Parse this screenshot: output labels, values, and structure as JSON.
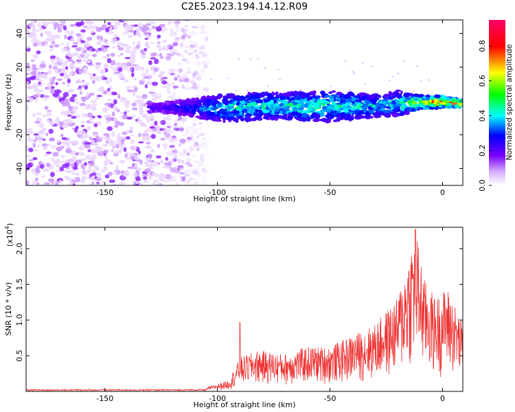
{
  "title": "C2E5.2023.194.14.12.R09",
  "chart_data": [
    {
      "type": "heatmap",
      "xlabel": "Height of straight line (km)",
      "ylabel": "Frequency (Hz)",
      "xlim": [
        -185,
        9
      ],
      "ylim": [
        -50,
        48
      ],
      "xticks": [
        -150,
        -100,
        -50,
        0
      ],
      "yticks": [
        -40,
        -20,
        0,
        20,
        40
      ],
      "colorbar": {
        "label": "Normalized spectral amplitude",
        "range": [
          0,
          0.95
        ],
        "ticks": [
          0.0,
          0.2,
          0.4,
          0.6,
          0.8
        ],
        "colors": [
          "#ffffff",
          "#7a00ff",
          "#0000ff",
          "#00ffff",
          "#00ff00",
          "#ffff00",
          "#ff0000",
          "#ff0066"
        ]
      },
      "noise_region": {
        "x": [
          -185,
          -110
        ],
        "freq": [
          -50,
          48
        ],
        "typical_amplitude": 0.05
      },
      "signal_band": [
        {
          "x": -125,
          "freq_low": -6,
          "freq_high": -2,
          "peak": 0.15
        },
        {
          "x": -110,
          "freq_low": -8,
          "freq_high": 0,
          "peak": 0.25
        },
        {
          "x": -100,
          "freq_low": -10,
          "freq_high": 2,
          "peak": 0.35
        },
        {
          "x": -90,
          "freq_low": -10,
          "freq_high": 2,
          "peak": 0.4
        },
        {
          "x": -80,
          "freq_low": -9,
          "freq_high": 3,
          "peak": 0.4
        },
        {
          "x": -70,
          "freq_low": -9,
          "freq_high": 3,
          "peak": 0.42
        },
        {
          "x": -60,
          "freq_low": -10,
          "freq_high": 3,
          "peak": 0.42
        },
        {
          "x": -50,
          "freq_low": -10,
          "freq_high": 4,
          "peak": 0.42
        },
        {
          "x": -40,
          "freq_low": -9,
          "freq_high": 3,
          "peak": 0.4
        },
        {
          "x": -30,
          "freq_low": -8,
          "freq_high": 2,
          "peak": 0.35
        },
        {
          "x": -20,
          "freq_low": -7,
          "freq_high": 4,
          "peak": 0.4
        },
        {
          "x": -10,
          "freq_low": -4,
          "freq_high": 2,
          "peak": 0.6
        },
        {
          "x": 0,
          "freq_low": -3,
          "freq_high": 2,
          "peak": 0.85
        },
        {
          "x": 8,
          "freq_low": -3,
          "freq_high": 0,
          "peak": 0.8
        }
      ]
    },
    {
      "type": "line",
      "xlabel": "Height of straight line (km)",
      "ylabel": "SNR (10 * v/v)",
      "yscale_label": "(x10",
      "yscale_exp": "4",
      "yscale_close": ")",
      "xlim": [
        -185,
        9
      ],
      "ylim": [
        0,
        2.3
      ],
      "xticks": [
        -150,
        -100,
        -50,
        0
      ],
      "yticks": [
        0.5,
        1.0,
        1.5,
        2.0
      ],
      "color": "#ee3333",
      "envelope": [
        {
          "x": -185,
          "y": 0.02
        },
        {
          "x": -120,
          "y": 0.02
        },
        {
          "x": -105,
          "y": 0.05
        },
        {
          "x": -95,
          "y": 0.15
        },
        {
          "x": -90,
          "y": 0.45
        },
        {
          "x": -82,
          "y": 0.55
        },
        {
          "x": -70,
          "y": 0.5
        },
        {
          "x": -60,
          "y": 0.6
        },
        {
          "x": -50,
          "y": 0.6
        },
        {
          "x": -40,
          "y": 0.75
        },
        {
          "x": -30,
          "y": 0.9
        },
        {
          "x": -20,
          "y": 1.25
        },
        {
          "x": -12,
          "y": 2.2
        },
        {
          "x": -8,
          "y": 1.5
        },
        {
          "x": -3,
          "y": 1.25
        },
        {
          "x": 2,
          "y": 1.4
        },
        {
          "x": 5,
          "y": 1.2
        },
        {
          "x": 9,
          "y": 0.9
        }
      ],
      "annotated_peaks": [
        {
          "x": -90,
          "y": 0.97
        },
        {
          "x": -12,
          "y": 2.27
        }
      ]
    }
  ]
}
